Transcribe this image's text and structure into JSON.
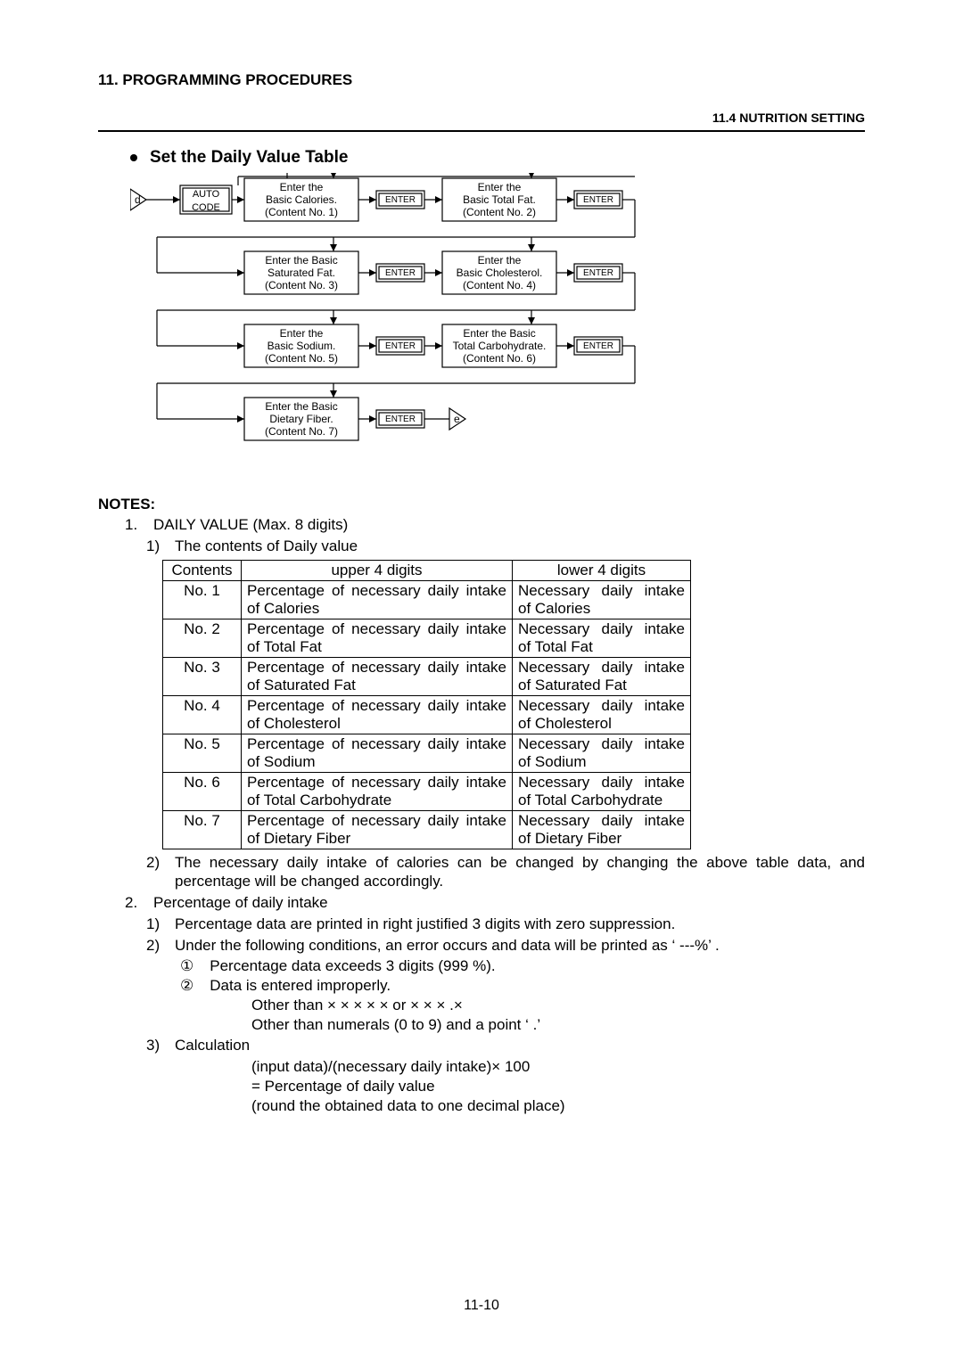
{
  "chapter": "11.  PROGRAMMING PROCEDURES",
  "section": "11.4 NUTRITION SETTING",
  "bullet_title": "Set the Daily Value Table",
  "flow": {
    "start": "d",
    "end": "e",
    "auto_code": "AUTO CODE",
    "enter": "ENTER",
    "steps": [
      {
        "l1": "Enter the",
        "l2": "Basic Calories.",
        "l3": "(Content No. 1)"
      },
      {
        "l1": "Enter the",
        "l2": "Basic Total Fat.",
        "l3": "(Content No. 2)"
      },
      {
        "l1": "Enter the Basic",
        "l2": "Saturated Fat.",
        "l3": "(Content No. 3)"
      },
      {
        "l1": "Enter the",
        "l2": "Basic Cholesterol.",
        "l3": "(Content No. 4)"
      },
      {
        "l1": "Enter the",
        "l2": "Basic Sodium.",
        "l3": "(Content No. 5)"
      },
      {
        "l1": "Enter the Basic",
        "l2": "Total Carbohydrate.",
        "l3": "(Content No. 6)"
      },
      {
        "l1": "Enter the Basic",
        "l2": "Dietary Fiber.",
        "l3": "(Content No. 7)"
      }
    ],
    "colors": {
      "line": "#000000",
      "fill": "#ffffff"
    },
    "font": {
      "label_size": 12,
      "key_size": 10
    }
  },
  "notes_label": "NOTES:",
  "note1_head": "DAILY VALUE (Max. 8 digits)",
  "note1_sub1": "The contents of Daily value",
  "table": {
    "headers": [
      "Contents",
      "upper 4 digits",
      "lower 4 digits"
    ],
    "rows": [
      {
        "c": "No. 1",
        "u": "Percentage of necessary daily intake of Calories",
        "l": "Necessary daily intake of Calories"
      },
      {
        "c": "No. 2",
        "u": "Percentage of necessary daily intake of Total Fat",
        "l": "Necessary daily intake of Total Fat"
      },
      {
        "c": "No. 3",
        "u": "Percentage of necessary daily intake of Saturated Fat",
        "l": "Necessary daily intake of Saturated Fat"
      },
      {
        "c": "No. 4",
        "u": "Percentage of necessary daily intake of Cholesterol",
        "l": "Necessary daily intake of Cholesterol"
      },
      {
        "c": "No. 5",
        "u": "Percentage of necessary daily intake of Sodium",
        "l": "Necessary daily intake of Sodium"
      },
      {
        "c": "No. 6",
        "u": "Percentage of necessary daily intake of Total Carbohydrate",
        "l": "Necessary daily intake of Total Carbohydrate"
      },
      {
        "c": "No. 7",
        "u": "Percentage of necessary daily intake of Dietary Fiber",
        "l": "Necessary daily intake of Dietary Fiber"
      }
    ]
  },
  "note1_sub2": "The necessary daily intake of calories can be changed by changing the above table data, and percentage will be changed accordingly.",
  "note2_head": "Percentage of daily intake",
  "note2_sub1": "Percentage data are printed in right justified 3 digits with zero suppression.",
  "note2_sub2": "Under the following conditions, an error occurs and data will be printed as ‘ ---%’ .",
  "note2_c1": "Percentage data exceeds 3 digits (999 %).",
  "note2_c2": "Data is entered improperly.",
  "note2_c2_a": "Other than  × × × × ×   or × × × .×",
  "note2_c2_b": "Other than numerals (0 to 9) and a point ‘ .’",
  "note2_sub3": "Calculation",
  "calc_1": "(input data)/(necessary daily intake)× 100",
  "calc_2": "= Percentage of daily value",
  "calc_3": "(round the obtained data to one decimal place)",
  "page_num": "11-10",
  "marks": {
    "one": "1.",
    "two": "2.",
    "p1": "1)",
    "p2": "2)",
    "p3": "3)",
    "c1": "①",
    "c2": "②"
  }
}
